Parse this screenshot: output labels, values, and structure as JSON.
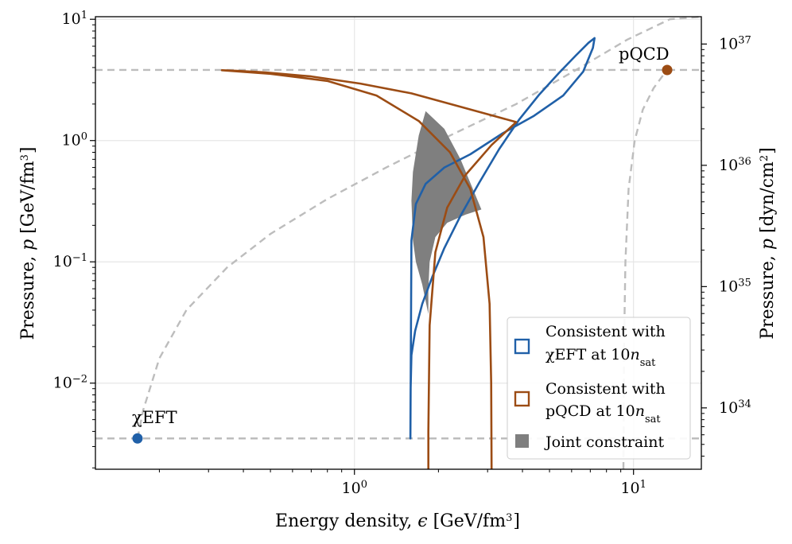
{
  "colors": {
    "chiEFT": "#2060a8",
    "pQCD": "#9c4c14",
    "joint": "#7f7f7f",
    "reference": "#bdbdbd",
    "grid": "#e6e6e6"
  },
  "chart_data": {
    "type": "line",
    "x_scale": "log",
    "y_scale": "log",
    "xlim": [
      0.118,
      17.5
    ],
    "ylim": [
      0.00195,
      10.5
    ],
    "right_ylim_dyn_cm2": [
      3.12e+33,
      1.68e+37
    ],
    "xlabel": "Energy density, ϵ [GeV/fm³]",
    "ylabel": "Pressure, p [GeV/fm³]",
    "ylabel_right": "Pressure, p [dyn/cm²]",
    "x_ticks": [
      {
        "value": 1,
        "base": "10",
        "exp": "0"
      },
      {
        "value": 10,
        "base": "10",
        "exp": "1"
      }
    ],
    "y_ticks": [
      {
        "value": 0.01,
        "base": "10",
        "exp": "−2"
      },
      {
        "value": 0.1,
        "base": "10",
        "exp": "−1"
      },
      {
        "value": 1,
        "base": "10",
        "exp": "0"
      },
      {
        "value": 10,
        "base": "10",
        "exp": "1"
      }
    ],
    "y_right_ticks": [
      {
        "value": 1e+34,
        "base": "10",
        "exp": "34"
      },
      {
        "value": 1e+35,
        "base": "10",
        "exp": "35"
      },
      {
        "value": 1e+36,
        "base": "10",
        "exp": "36"
      },
      {
        "value": 1e+37,
        "base": "10",
        "exp": "37"
      }
    ],
    "points": [
      {
        "name": "χEFT",
        "x": 0.167,
        "y": 0.0035
      },
      {
        "name": "pQCD",
        "x": 13.2,
        "y": 3.82
      }
    ],
    "series": [
      {
        "name": "Consistent with χEFT at 10n_sat",
        "closed": true,
        "x": [
          1.587,
          1.59,
          1.6,
          1.65,
          1.75,
          1.9,
          2.1,
          2.4,
          2.8,
          3.3,
          3.9,
          4.6,
          5.4,
          6.2,
          6.9,
          7.25,
          7.15,
          6.6,
          5.6,
          4.4,
          3.4,
          2.6,
          2.1,
          1.8,
          1.66,
          1.6,
          1.587
        ],
        "y": [
          0.0035,
          0.009,
          0.017,
          0.027,
          0.045,
          0.075,
          0.13,
          0.24,
          0.45,
          0.85,
          1.5,
          2.4,
          3.6,
          5.0,
          6.4,
          7.0,
          5.8,
          3.7,
          2.35,
          1.6,
          1.15,
          0.77,
          0.6,
          0.44,
          0.3,
          0.15,
          0.0035
        ]
      },
      {
        "name": "Consistent with pQCD at 10n_sat",
        "closed": false,
        "x": [
          1.84,
          1.84,
          1.86,
          1.95,
          2.15,
          2.5,
          3.1,
          3.8,
          3.15,
          2.3,
          1.6,
          1.05,
          0.7,
          0.48,
          0.38,
          0.335,
          0.5,
          0.8,
          1.2,
          1.7,
          2.2,
          2.6,
          2.9,
          3.05,
          3.09,
          3.1
        ],
        "y": [
          0.00195,
          0.004,
          0.03,
          0.12,
          0.28,
          0.52,
          0.92,
          1.42,
          1.6,
          1.95,
          2.45,
          2.95,
          3.38,
          3.65,
          3.76,
          3.8,
          3.55,
          3.1,
          2.35,
          1.45,
          0.8,
          0.4,
          0.16,
          0.045,
          0.01,
          0.00195
        ]
      },
      {
        "name": "Joint constraint",
        "closed": true,
        "x": [
          1.84,
          1.84,
          1.86,
          1.95,
          2.15,
          2.5,
          2.85,
          2.4,
          2.1,
          1.8,
          1.7,
          1.62,
          1.6,
          1.62,
          1.66,
          1.75,
          1.84
        ],
        "y": [
          0.037,
          0.06,
          0.1,
          0.16,
          0.21,
          0.245,
          0.27,
          0.7,
          1.25,
          1.75,
          1.1,
          0.55,
          0.32,
          0.15,
          0.1,
          0.065,
          0.037
        ]
      },
      {
        "name": "Reference (upper, dashed)",
        "dashed": true,
        "x": [
          0.167,
          0.175,
          0.2,
          0.25,
          0.35,
          0.5,
          0.8,
          1.3,
          2.2,
          3.8,
          6.2,
          9.5,
          13.5,
          17.5
        ],
        "y": [
          0.0035,
          0.006,
          0.016,
          0.04,
          0.09,
          0.17,
          0.33,
          0.6,
          1.1,
          2.0,
          3.8,
          6.8,
          10.0,
          12.5
        ]
      },
      {
        "name": "Reference (lower, dashed)",
        "dashed": true,
        "x": [
          9.2,
          9.25,
          9.35,
          9.6,
          10.1,
          10.8,
          11.8,
          12.7,
          13.2
        ],
        "y": [
          0.00195,
          0.02,
          0.1,
          0.4,
          1.0,
          1.8,
          2.7,
          3.4,
          3.82
        ]
      }
    ],
    "reference_lines": [
      {
        "orientation": "horizontal",
        "y": 0.0035,
        "dashed": true
      },
      {
        "orientation": "horizontal",
        "y": 3.82,
        "dashed": true
      }
    ],
    "legend": {
      "placement": "bottom-right",
      "entries": [
        {
          "line1": "Consistent with",
          "line2_pre": "χEFT at 10",
          "line2_var": "n",
          "line2_sub": "sat",
          "style": "blue-outline"
        },
        {
          "line1": "Consistent with",
          "line2_pre": "pQCD at 10",
          "line2_var": "n",
          "line2_sub": "sat",
          "style": "orange-outline"
        },
        {
          "line1": "Joint constraint",
          "style": "gray-fill"
        }
      ]
    },
    "annotations": [
      {
        "text": "χEFT",
        "near": "χEFT point"
      },
      {
        "text": "pQCD",
        "near": "pQCD point"
      }
    ],
    "grid": true
  },
  "labels": {
    "x_prefix": "Energy density, ",
    "x_sym": "ϵ",
    "x_unit_pre": " [GeV/fm",
    "x_unit_exp": "3",
    "x_unit_post": "]",
    "y_prefix": "Pressure, ",
    "y_sym": "p",
    "y_unit_pre": " [GeV/fm",
    "y_unit_exp": "3",
    "y_unit_post": "]",
    "yr_prefix": "Pressure, ",
    "yr_sym": "p",
    "yr_unit_pre": " [dyn/cm",
    "yr_unit_exp": "2",
    "yr_unit_post": "]",
    "anno_chi": "χEFT",
    "anno_pqcd": "pQCD"
  }
}
